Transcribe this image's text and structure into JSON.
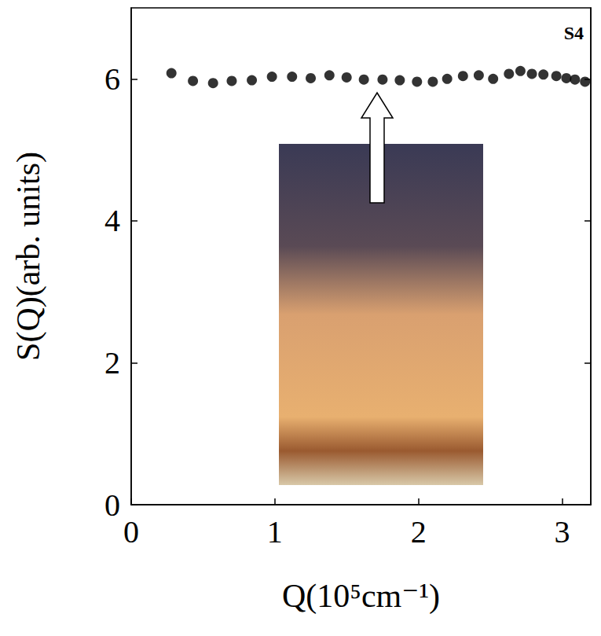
{
  "chart_data": {
    "type": "scatter",
    "x_label": "Q(10⁵cm⁻¹)",
    "y_label": "S(Q)(arb. units)",
    "annotations": [
      "S4"
    ],
    "color": "#000000",
    "marker": "circle",
    "x": [
      0.28,
      0.43,
      0.57,
      0.7,
      0.84,
      0.98,
      1.12,
      1.25,
      1.38,
      1.5,
      1.62,
      1.75,
      1.87,
      1.99,
      2.1,
      2.2,
      2.31,
      2.42,
      2.52,
      2.63,
      2.71,
      2.79,
      2.87,
      2.96,
      3.03,
      3.09,
      3.16
    ],
    "values": [
      6.08,
      5.97,
      5.94,
      5.97,
      5.98,
      6.03,
      6.03,
      6.01,
      6.05,
      6.02,
      5.99,
      5.99,
      5.98,
      5.96,
      5.96,
      6.0,
      6.04,
      6.05,
      6.0,
      6.07,
      6.11,
      6.07,
      6.06,
      6.04,
      6.01,
      5.99,
      5.96
    ],
    "xlim": [
      0,
      3.2
    ],
    "xticks": [
      0,
      1,
      2,
      3
    ],
    "ylim": [
      0,
      7
    ],
    "yticks": [
      0,
      2,
      4,
      6
    ],
    "grid": false
  }
}
